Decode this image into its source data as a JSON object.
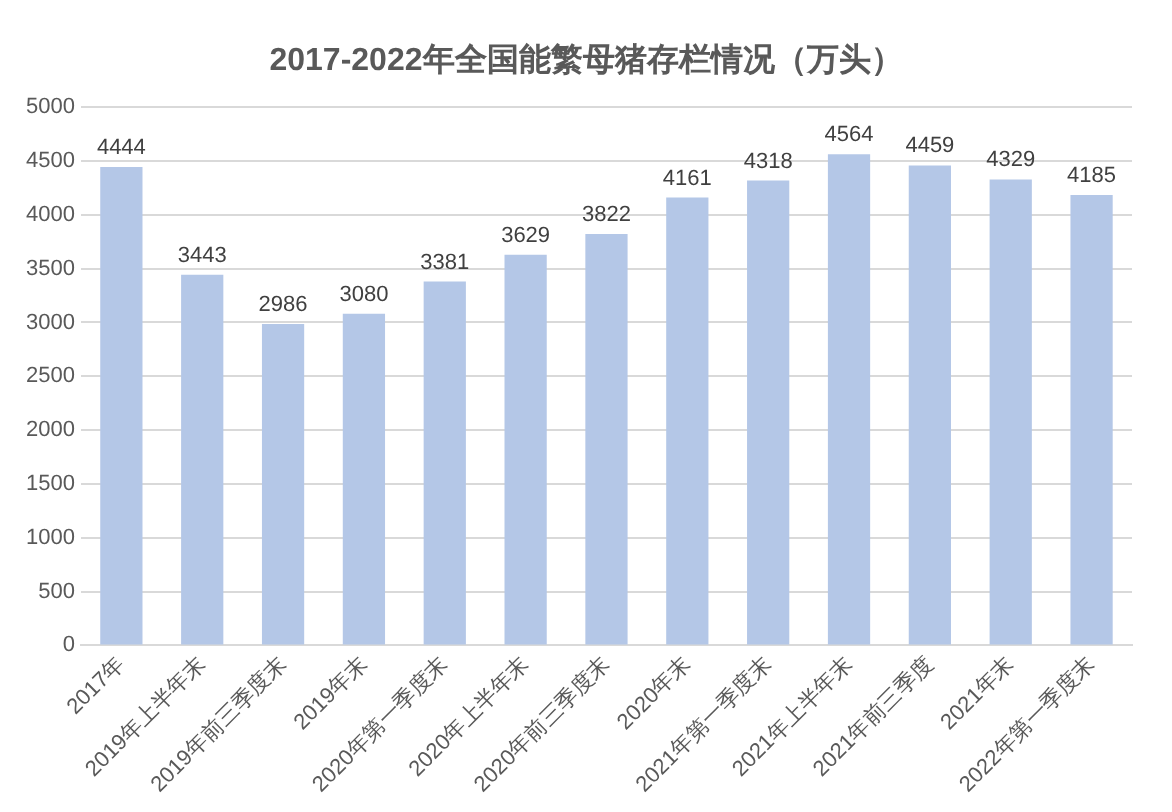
{
  "chart_data": {
    "type": "bar",
    "title": "2017-2022年全国能繁母猪存栏情况（万头）",
    "categories": [
      "2017年",
      "2019年上半年末",
      "2019年前三季度末",
      "2019年末",
      "2020年第一季度末",
      "2020年上半年末",
      "2020年前三季度末",
      "2020年末",
      "2021年第一季度末",
      "2021年上半年末",
      "2021年前三季度",
      "2021年末",
      "2022年第一季度末"
    ],
    "values": [
      4444,
      3443,
      2986,
      3080,
      3381,
      3629,
      3822,
      4161,
      4318,
      4564,
      4459,
      4329,
      4185
    ],
    "color": "#b4c7e7",
    "ylim": [
      0,
      5000
    ],
    "yticks": [
      0,
      500,
      1000,
      1500,
      2000,
      2500,
      3000,
      3500,
      4000,
      4500,
      5000
    ],
    "grid": "y",
    "data_labels": true,
    "legend": false
  }
}
